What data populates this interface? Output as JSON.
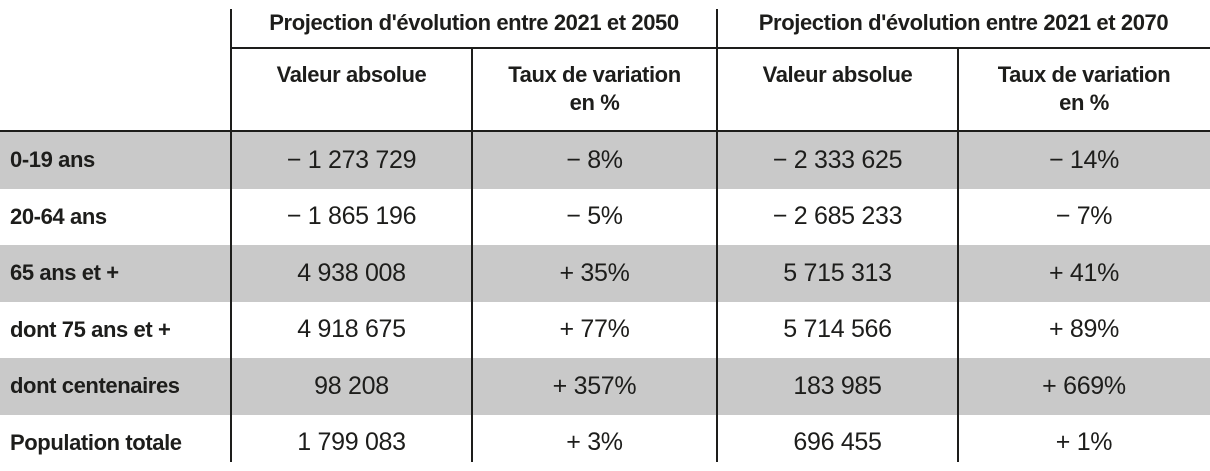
{
  "colors": {
    "stripe_gray": "#c9c9c9",
    "rule_black": "#1d1d1b",
    "text": "#1d1d1b",
    "background": "#ffffff"
  },
  "table": {
    "column_groups": [
      {
        "label": "Projection d'évolution entre 2021 et 2050",
        "subcolumns": [
          "Valeur absolue",
          "Taux de variation\nen %"
        ]
      },
      {
        "label": "Projection d'évolution entre 2021 et 2070",
        "subcolumns": [
          "Valeur absolue",
          "Taux de variation\nen %"
        ]
      }
    ],
    "rows": [
      {
        "label": "0-19 ans",
        "values": [
          "− 1 273 729",
          "− 8%",
          "− 2 333 625",
          "− 14%"
        ],
        "striped": true
      },
      {
        "label": "20-64 ans",
        "values": [
          "− 1 865 196",
          "− 5%",
          "− 2 685 233",
          "− 7%"
        ],
        "striped": false
      },
      {
        "label": "65 ans et +",
        "values": [
          "4 938 008",
          "+ 35%",
          "5 715 313",
          "+ 41%"
        ],
        "striped": true
      },
      {
        "label": "dont 75 ans et +",
        "values": [
          "4 918 675",
          "+ 77%",
          "5 714 566",
          "+ 89%"
        ],
        "striped": false
      },
      {
        "label": "dont centenaires",
        "values": [
          "98 208",
          "+ 357%",
          "183 985",
          "+ 669%"
        ],
        "striped": true
      },
      {
        "label": "Population totale",
        "values": [
          "1 799 083",
          "+ 3%",
          "696 455",
          "+ 1%"
        ],
        "striped": false
      }
    ]
  },
  "chart_data": {
    "type": "table",
    "title": "",
    "column_groups": [
      "Projection d'évolution entre 2021 et 2050",
      "Projection d'évolution entre 2021 et 2070"
    ],
    "columns": [
      "",
      "Valeur absolue (2021-2050)",
      "Taux de variation en % (2021-2050)",
      "Valeur absolue (2021-2070)",
      "Taux de variation en % (2021-2070)"
    ],
    "rows": [
      [
        "0-19 ans",
        -1273729,
        -8,
        -2333625,
        -14
      ],
      [
        "20-64 ans",
        -1865196,
        -5,
        -2685233,
        -7
      ],
      [
        "65 ans et +",
        4938008,
        35,
        5715313,
        41
      ],
      [
        "dont 75 ans et +",
        4918675,
        77,
        5714566,
        89
      ],
      [
        "dont centenaires",
        98208,
        357,
        183985,
        669
      ],
      [
        "Population totale",
        1799083,
        3,
        696455,
        1
      ]
    ]
  }
}
